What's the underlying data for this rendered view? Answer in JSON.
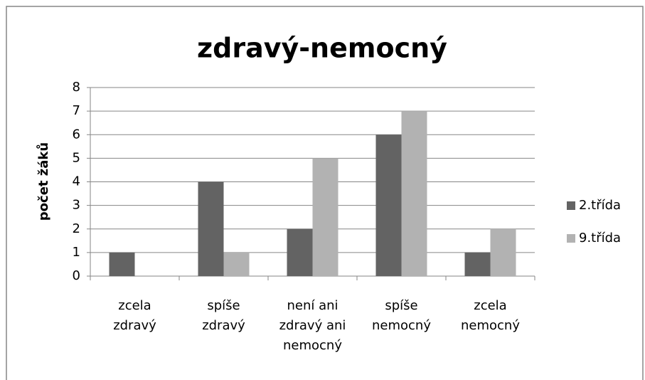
{
  "chart_data": {
    "type": "bar",
    "title": "zdravý-nemocný",
    "y_label": "počet žáků",
    "categories": [
      "zcela zdravý",
      "spíše zdravý",
      "není ani zdravý ani nemocný",
      "spíše nemocný",
      "zcela nemocný"
    ],
    "series": [
      {
        "name": "2.třída",
        "color": "#636363",
        "values": [
          1,
          4,
          2,
          6,
          1
        ]
      },
      {
        "name": "9.třída",
        "color": "#b2b2b2",
        "values": [
          0,
          1,
          5,
          7,
          2
        ]
      }
    ],
    "ylim": [
      0,
      8
    ],
    "yticks": [
      0,
      1,
      2,
      3,
      4,
      5,
      6,
      7,
      8
    ],
    "grid": true,
    "legend": "right"
  }
}
